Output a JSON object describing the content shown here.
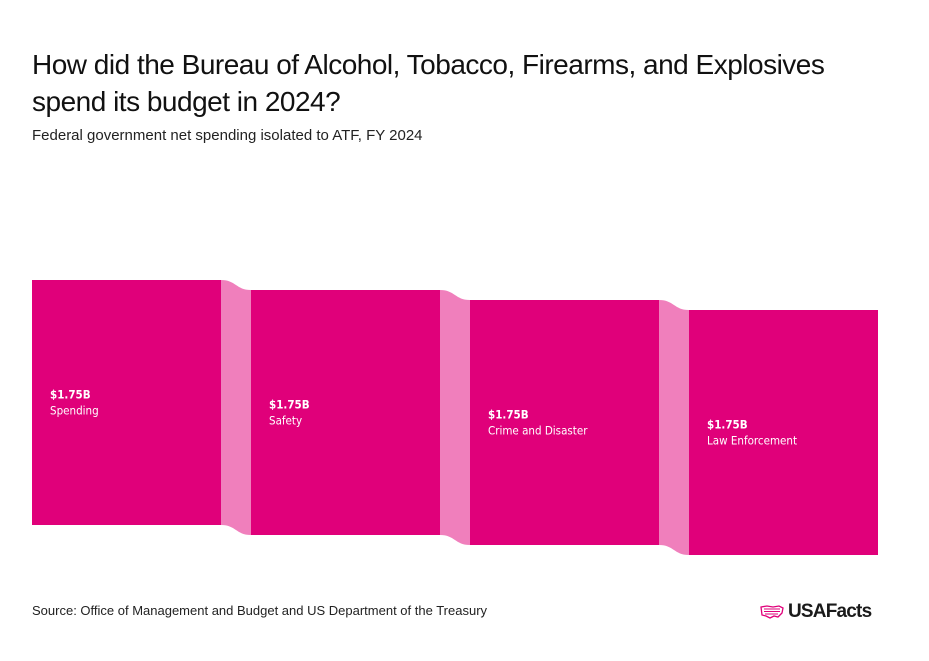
{
  "chart_data": {
    "type": "sankey",
    "title": "How did the Bureau of Alcohol, Tobacco, Firearms, and Explosives spend its budget in 2024?",
    "subtitle": "Federal government net spending isolated to ATF, FY 2024",
    "nodes": [
      {
        "value_label": "$1.75B",
        "label": "Spending",
        "value": 1.75
      },
      {
        "value_label": "$1.75B",
        "label": "Safety",
        "value": 1.75
      },
      {
        "value_label": "$1.75B",
        "label": "Crime and Disaster",
        "value": 1.75
      },
      {
        "value_label": "$1.75B",
        "label": "Law Enforcement",
        "value": 1.75
      }
    ],
    "links": [
      {
        "from": "Spending",
        "to": "Safety",
        "value": 1.75
      },
      {
        "from": "Safety",
        "to": "Crime and Disaster",
        "value": 1.75
      },
      {
        "from": "Crime and Disaster",
        "to": "Law Enforcement",
        "value": 1.75
      }
    ],
    "unit": "billions USD"
  },
  "colors": {
    "node": "#e0007a",
    "link": "#f07fbc",
    "text": "#111111"
  },
  "footer": {
    "source": "Source: Office of Management and Budget and US Department of the Treasury",
    "logo": "USAFacts"
  }
}
